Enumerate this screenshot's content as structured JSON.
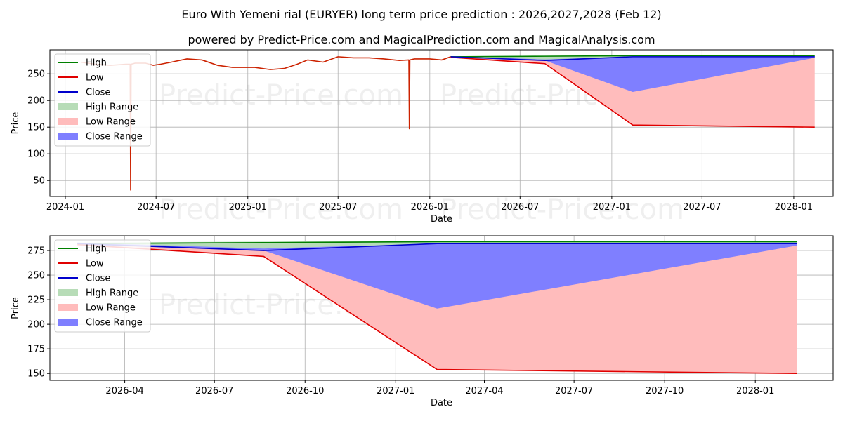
{
  "title": "Euro With Yemeni rial (EURYER) long term price prediction : 2026,2027,2028 (Feb 12)",
  "subtitle": "powered by Predict-Price.com and MagicalPrediction.com and MagicalAnalysis.com",
  "watermark": "Predict-Price.com",
  "colors": {
    "high": "#008000",
    "low": "#e00000",
    "close": "#0000cc",
    "high_range": "#b7dcb7",
    "low_range": "#ffbcbc",
    "close_range": "#7f7fff",
    "history": "#cc2200"
  },
  "chart_data": [
    {
      "type": "line",
      "name": "overview",
      "xlabel": "Date",
      "ylabel": "Price",
      "grid": true,
      "legend_position": "top-left",
      "legend": [
        "High",
        "Low",
        "Close",
        "High Range",
        "Low Range",
        "Close Range"
      ],
      "xlim": [
        "2023-12-01",
        "2028-03-20"
      ],
      "ylim": [
        20,
        295
      ],
      "x_ticks": [
        "2024-01",
        "2024-07",
        "2025-01",
        "2025-07",
        "2026-01",
        "2026-07",
        "2027-01",
        "2027-07",
        "2028-01"
      ],
      "y_ticks": [
        50,
        100,
        150,
        200,
        250
      ],
      "history": {
        "x": [
          "2024-02-01",
          "2024-03-01",
          "2024-04-01",
          "2024-05-01",
          "2024-05-10",
          "2024-05-11",
          "2024-05-12",
          "2024-05-20",
          "2024-06-10",
          "2024-06-25",
          "2024-07-10",
          "2024-08-01",
          "2024-09-01",
          "2024-10-01",
          "2024-11-01",
          "2024-12-01",
          "2025-01-15",
          "2025-02-15",
          "2025-03-15",
          "2025-04-10",
          "2025-05-01",
          "2025-06-01",
          "2025-07-01",
          "2025-08-01",
          "2025-09-01",
          "2025-10-01",
          "2025-11-01",
          "2025-11-20",
          "2025-11-21",
          "2025-11-22",
          "2025-12-01",
          "2026-01-01",
          "2026-01-25",
          "2026-02-12"
        ],
        "y": [
          272,
          268,
          266,
          268,
          268,
          32,
          268,
          270,
          270,
          266,
          268,
          272,
          278,
          276,
          266,
          262,
          262,
          258,
          260,
          268,
          276,
          272,
          282,
          280,
          280,
          278,
          275,
          276,
          147,
          276,
          278,
          278,
          276,
          282
        ]
      },
      "series": [
        {
          "name": "High",
          "x": [
            "2026-02-12",
            "2026-08-20",
            "2027-02-12",
            "2028-02-12"
          ],
          "values": [
            282,
            283,
            284,
            284
          ]
        },
        {
          "name": "Low",
          "x": [
            "2026-02-12",
            "2026-08-20",
            "2027-02-12",
            "2028-02-12"
          ],
          "values": [
            281,
            269,
            154,
            150
          ]
        },
        {
          "name": "Close",
          "x": [
            "2026-02-12",
            "2026-08-20",
            "2027-02-12",
            "2028-02-12"
          ],
          "values": [
            282,
            275,
            282,
            282
          ]
        }
      ],
      "ranges": [
        {
          "name": "High Range",
          "x": [
            "2026-02-12",
            "2026-08-20",
            "2027-02-12",
            "2028-02-12"
          ],
          "lower": [
            281,
            276,
            281,
            281
          ],
          "upper": [
            283,
            284,
            285,
            285
          ]
        },
        {
          "name": "Low Range",
          "x": [
            "2026-02-12",
            "2026-08-20",
            "2027-02-12",
            "2028-02-12"
          ],
          "lower": [
            280,
            269,
            154,
            150
          ],
          "upper": [
            282,
            276,
            282,
            282
          ]
        },
        {
          "name": "Close Range",
          "x": [
            "2026-02-12",
            "2026-08-20",
            "2027-02-12",
            "2028-02-12"
          ],
          "lower": [
            281,
            275,
            216,
            280
          ],
          "upper": [
            283,
            277,
            282,
            283
          ]
        }
      ]
    },
    {
      "type": "line",
      "name": "forecast",
      "xlabel": "Date",
      "ylabel": "Price",
      "grid": true,
      "legend_position": "top-left",
      "legend": [
        "High",
        "Low",
        "Close",
        "High Range",
        "Low Range",
        "Close Range"
      ],
      "xlim": [
        "2026-01-15",
        "2028-03-20"
      ],
      "ylim": [
        143,
        290
      ],
      "x_ticks": [
        "2026-04",
        "2026-07",
        "2026-10",
        "2027-01",
        "2027-04",
        "2027-07",
        "2027-10",
        "2028-01"
      ],
      "y_ticks": [
        150,
        175,
        200,
        225,
        250,
        275
      ],
      "series": [
        {
          "name": "High",
          "x": [
            "2026-02-12",
            "2026-08-20",
            "2027-02-12",
            "2028-02-12"
          ],
          "values": [
            282,
            283,
            284,
            284
          ]
        },
        {
          "name": "Low",
          "x": [
            "2026-02-12",
            "2026-08-20",
            "2027-02-12",
            "2028-02-12"
          ],
          "values": [
            281,
            269,
            154,
            150
          ]
        },
        {
          "name": "Close",
          "x": [
            "2026-02-12",
            "2026-08-20",
            "2027-02-12",
            "2028-02-12"
          ],
          "values": [
            282,
            275,
            282,
            282
          ]
        }
      ],
      "ranges": [
        {
          "name": "High Range",
          "x": [
            "2026-02-12",
            "2026-08-20",
            "2027-02-12",
            "2028-02-12"
          ],
          "lower": [
            281,
            276,
            281,
            281
          ],
          "upper": [
            283,
            284,
            285,
            285
          ]
        },
        {
          "name": "Low Range",
          "x": [
            "2026-02-12",
            "2026-08-20",
            "2027-02-12",
            "2028-02-12"
          ],
          "lower": [
            280,
            269,
            154,
            150
          ],
          "upper": [
            282,
            276,
            282,
            282
          ]
        },
        {
          "name": "Close Range",
          "x": [
            "2026-02-12",
            "2026-08-20",
            "2027-02-12",
            "2028-02-12"
          ],
          "lower": [
            281,
            275,
            216,
            280
          ],
          "upper": [
            283,
            277,
            282,
            283
          ]
        }
      ]
    }
  ]
}
